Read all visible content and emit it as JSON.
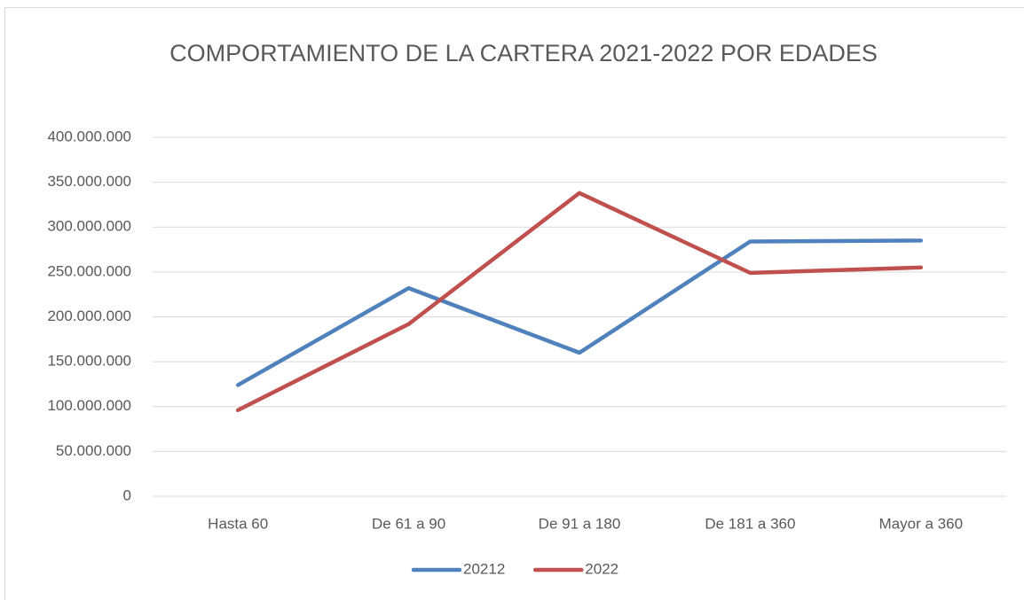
{
  "chart_data": {
    "type": "line",
    "title": "COMPORTAMIENTO DE LA CARTERA 2021-2022 POR EDADES",
    "categories": [
      "Hasta 60",
      "De 61 a 90",
      "De 91 a 180",
      "De 181 a 360",
      "Mayor a 360"
    ],
    "series": [
      {
        "name": "20212",
        "color": "#4f81bd",
        "values": [
          124000000,
          232000000,
          160000000,
          284000000,
          285000000
        ]
      },
      {
        "name": "2022",
        "color": "#c0504d",
        "values": [
          96000000,
          192000000,
          338000000,
          249000000,
          255000000
        ]
      }
    ],
    "ylim": [
      0,
      400000000
    ],
    "yticks": [
      0,
      {
        "value": 50000000,
        "label": "50.000.000"
      },
      {
        "value": 100000000,
        "label": "100.000.000"
      },
      {
        "value": 150000000,
        "label": "150.000.000"
      },
      {
        "value": 200000000,
        "label": "200.000.000"
      },
      {
        "value": 250000000,
        "label": "250.000.000"
      },
      {
        "value": 300000000,
        "label": "300.000.000"
      },
      {
        "value": 350000000,
        "label": "350.000.000"
      },
      {
        "value": 400000000,
        "label": "400.000.000"
      }
    ],
    "grid": true,
    "legend": "bottom"
  }
}
